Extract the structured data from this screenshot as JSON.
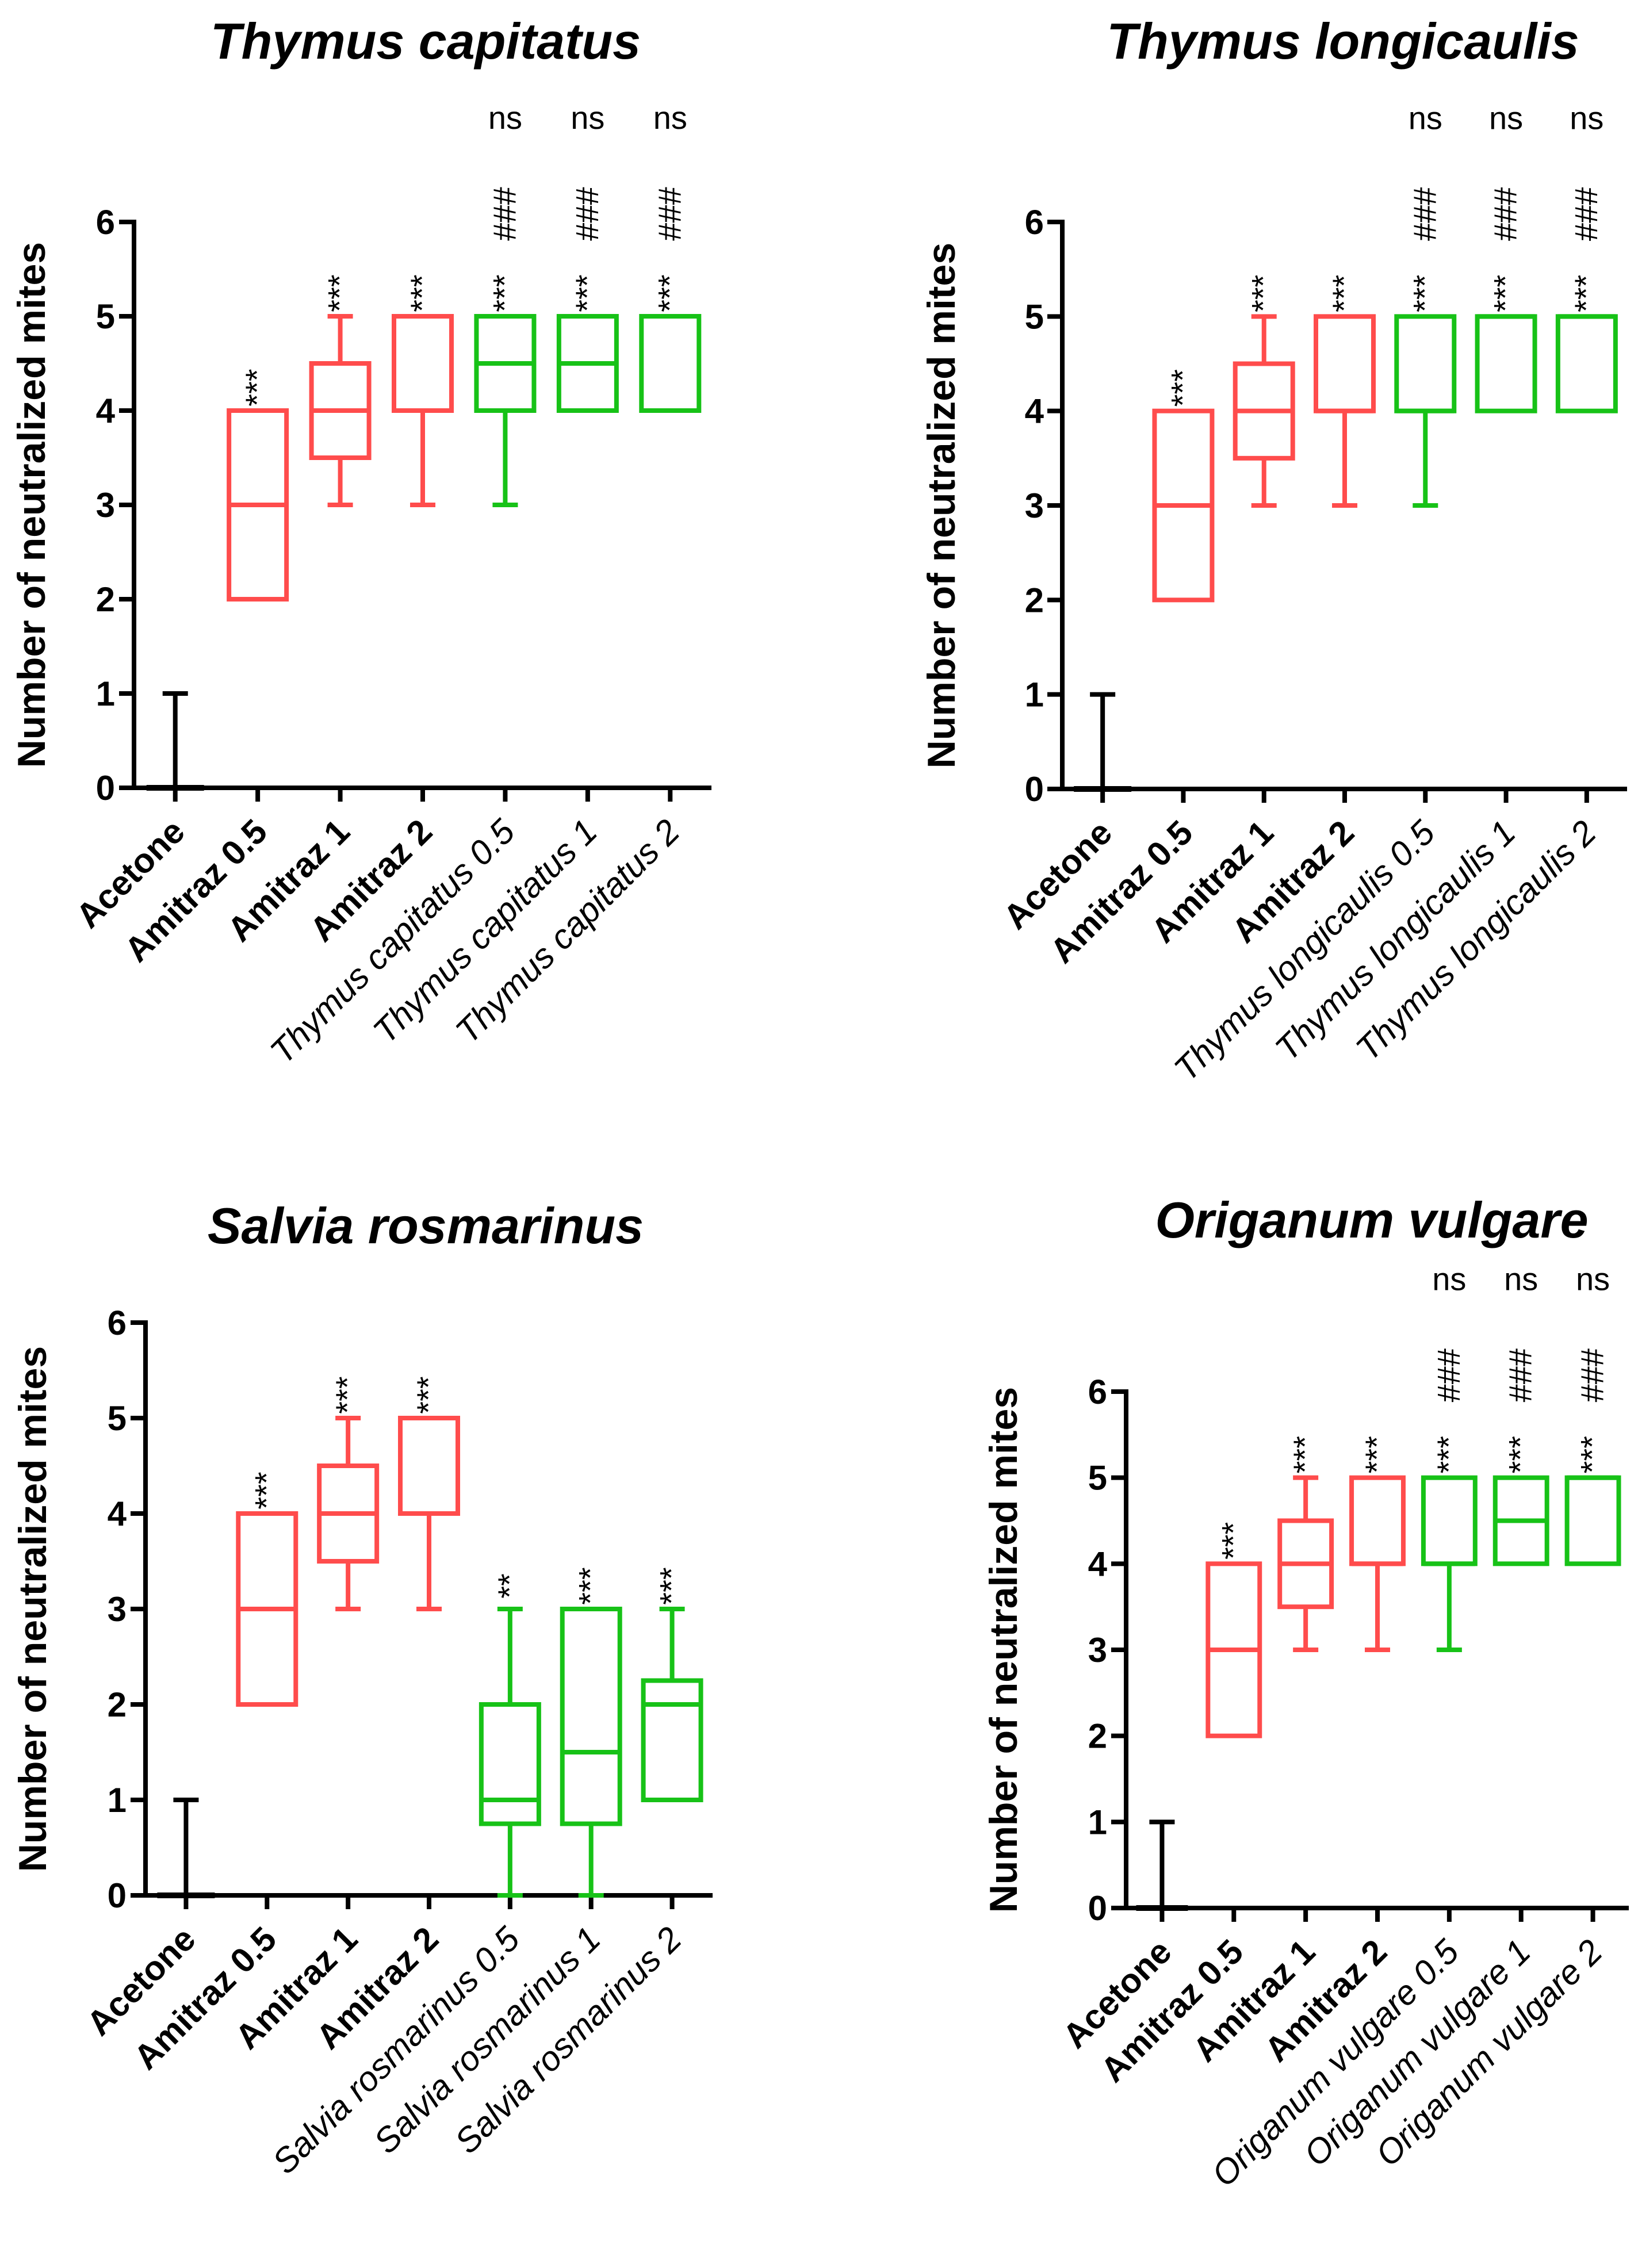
{
  "figure": {
    "ylabel": "Number of neutralized mites",
    "colors": {
      "control": "#000000",
      "reference": "#FF4C4C",
      "treatment": "#17C217"
    }
  },
  "chart_data": [
    {
      "type": "boxplot",
      "title": "Thymus capitatus",
      "ylabel": "Number of neutralized mites",
      "ylim": [
        0,
        6
      ],
      "yticks": [
        0,
        1,
        2,
        3,
        4,
        5,
        6
      ],
      "categories": [
        {
          "label": "Acetone",
          "style": "bold"
        },
        {
          "label": "Amitraz 0.5",
          "style": "bold"
        },
        {
          "label": "Amitraz 1",
          "style": "bold"
        },
        {
          "label": "Amitraz 2",
          "style": "bold"
        },
        {
          "label": "Thymus capitatus 0.5",
          "style": "italic"
        },
        {
          "label": "Thymus capitatus 1",
          "style": "italic"
        },
        {
          "label": "Thymus capitatus 2",
          "style": "italic"
        }
      ],
      "boxes": [
        {
          "group": "control",
          "min": 0,
          "q1": 0,
          "median": 0,
          "q3": 0,
          "max": 1
        },
        {
          "group": "reference",
          "min": 2,
          "q1": 2,
          "median": 3,
          "q3": 4,
          "max": 4
        },
        {
          "group": "reference",
          "min": 3,
          "q1": 3.5,
          "median": 4,
          "q3": 4.5,
          "max": 5
        },
        {
          "group": "reference",
          "min": 3,
          "q1": 4,
          "median": 4,
          "q3": 5,
          "max": 5
        },
        {
          "group": "treatment",
          "min": 3,
          "q1": 4,
          "median": 4.5,
          "q3": 5,
          "max": 5
        },
        {
          "group": "treatment",
          "min": 4,
          "q1": 4,
          "median": 4.5,
          "q3": 5,
          "max": 5
        },
        {
          "group": "treatment",
          "min": 4,
          "q1": 4,
          "median": 5,
          "q3": 5,
          "max": 5
        }
      ],
      "annotations": [
        [],
        [
          "***"
        ],
        [
          "***"
        ],
        [
          "***"
        ],
        [
          "***",
          "###",
          "ns"
        ],
        [
          "***",
          "###",
          "ns"
        ],
        [
          "***",
          "###",
          "ns"
        ]
      ]
    },
    {
      "type": "boxplot",
      "title": "Thymus longicaulis",
      "ylabel": "Number of neutralized mites",
      "ylim": [
        0,
        6
      ],
      "yticks": [
        0,
        1,
        2,
        3,
        4,
        5,
        6
      ],
      "categories": [
        {
          "label": "Acetone",
          "style": "bold"
        },
        {
          "label": "Amitraz 0.5",
          "style": "bold"
        },
        {
          "label": "Amitraz 1",
          "style": "bold"
        },
        {
          "label": "Amitraz 2",
          "style": "bold"
        },
        {
          "label": "Thymus longicaulis 0.5",
          "style": "italic"
        },
        {
          "label": "Thymus longicaulis 1",
          "style": "italic"
        },
        {
          "label": "Thymus longicaulis 2",
          "style": "italic"
        }
      ],
      "boxes": [
        {
          "group": "control",
          "min": 0,
          "q1": 0,
          "median": 0,
          "q3": 0,
          "max": 1
        },
        {
          "group": "reference",
          "min": 2,
          "q1": 2,
          "median": 3,
          "q3": 4,
          "max": 4
        },
        {
          "group": "reference",
          "min": 3,
          "q1": 3.5,
          "median": 4,
          "q3": 4.5,
          "max": 5
        },
        {
          "group": "reference",
          "min": 3,
          "q1": 4,
          "median": 4,
          "q3": 5,
          "max": 5
        },
        {
          "group": "treatment",
          "min": 3,
          "q1": 4,
          "median": 4,
          "q3": 5,
          "max": 5
        },
        {
          "group": "treatment",
          "min": 4,
          "q1": 4,
          "median": 5,
          "q3": 5,
          "max": 5
        },
        {
          "group": "treatment",
          "min": 4,
          "q1": 4,
          "median": 5,
          "q3": 5,
          "max": 5
        }
      ],
      "annotations": [
        [],
        [
          "***"
        ],
        [
          "***"
        ],
        [
          "***"
        ],
        [
          "***",
          "###",
          "ns"
        ],
        [
          "***",
          "###",
          "ns"
        ],
        [
          "***",
          "###",
          "ns"
        ]
      ]
    },
    {
      "type": "boxplot",
      "title": "Salvia rosmarinus",
      "ylabel": "Number of neutralized mites",
      "ylim": [
        0,
        6
      ],
      "yticks": [
        0,
        1,
        2,
        3,
        4,
        5,
        6
      ],
      "categories": [
        {
          "label": "Acetone",
          "style": "bold"
        },
        {
          "label": "Amitraz 0.5",
          "style": "bold"
        },
        {
          "label": "Amitraz 1",
          "style": "bold"
        },
        {
          "label": "Amitraz 2",
          "style": "bold"
        },
        {
          "label": "Salvia rosmarinus 0.5",
          "style": "italic"
        },
        {
          "label": "Salvia rosmarinus 1",
          "style": "italic"
        },
        {
          "label": "Salvia rosmarinus 2",
          "style": "italic"
        }
      ],
      "boxes": [
        {
          "group": "control",
          "min": 0,
          "q1": 0,
          "median": 0,
          "q3": 0,
          "max": 1
        },
        {
          "group": "reference",
          "min": 2,
          "q1": 2,
          "median": 3,
          "q3": 4,
          "max": 4
        },
        {
          "group": "reference",
          "min": 3,
          "q1": 3.5,
          "median": 4,
          "q3": 4.5,
          "max": 5
        },
        {
          "group": "reference",
          "min": 3,
          "q1": 4,
          "median": 4,
          "q3": 5,
          "max": 5
        },
        {
          "group": "treatment",
          "min": 0,
          "q1": 0.75,
          "median": 1,
          "q3": 2,
          "max": 3
        },
        {
          "group": "treatment",
          "min": 0,
          "q1": 0.75,
          "median": 1.5,
          "q3": 3,
          "max": 3
        },
        {
          "group": "treatment",
          "min": 1,
          "q1": 1,
          "median": 2,
          "q3": 2.25,
          "max": 3
        }
      ],
      "annotations": [
        [],
        [
          "***"
        ],
        [
          "***"
        ],
        [
          "***"
        ],
        [
          "**"
        ],
        [
          "***"
        ],
        [
          "***"
        ]
      ]
    },
    {
      "type": "boxplot",
      "title": "Origanum vulgare",
      "ylabel": "Number of neutralized mites",
      "ylim": [
        0,
        6
      ],
      "yticks": [
        0,
        1,
        2,
        3,
        4,
        5,
        6
      ],
      "categories": [
        {
          "label": "Acetone",
          "style": "bold"
        },
        {
          "label": "Amitraz 0.5",
          "style": "bold"
        },
        {
          "label": "Amitraz 1",
          "style": "bold"
        },
        {
          "label": "Amitraz 2",
          "style": "bold"
        },
        {
          "label": "Origanum vulgare 0.5",
          "style": "italic"
        },
        {
          "label": "Origanum vulgare 1",
          "style": "italic"
        },
        {
          "label": "Origanum vulgare 2",
          "style": "italic"
        }
      ],
      "boxes": [
        {
          "group": "control",
          "min": 0,
          "q1": 0,
          "median": 0,
          "q3": 0,
          "max": 1
        },
        {
          "group": "reference",
          "min": 2,
          "q1": 2,
          "median": 3,
          "q3": 4,
          "max": 4
        },
        {
          "group": "reference",
          "min": 3,
          "q1": 3.5,
          "median": 4,
          "q3": 4.5,
          "max": 5
        },
        {
          "group": "reference",
          "min": 3,
          "q1": 4,
          "median": 4,
          "q3": 5,
          "max": 5
        },
        {
          "group": "treatment",
          "min": 3,
          "q1": 4,
          "median": 4,
          "q3": 5,
          "max": 5
        },
        {
          "group": "treatment",
          "min": 4,
          "q1": 4,
          "median": 4.5,
          "q3": 5,
          "max": 5
        },
        {
          "group": "treatment",
          "min": 4,
          "q1": 4,
          "median": 5,
          "q3": 5,
          "max": 5
        }
      ],
      "annotations": [
        [],
        [
          "***"
        ],
        [
          "***"
        ],
        [
          "***"
        ],
        [
          "***",
          "###",
          "ns"
        ],
        [
          "***",
          "###",
          "ns"
        ],
        [
          "***",
          "###",
          "ns"
        ]
      ]
    }
  ]
}
